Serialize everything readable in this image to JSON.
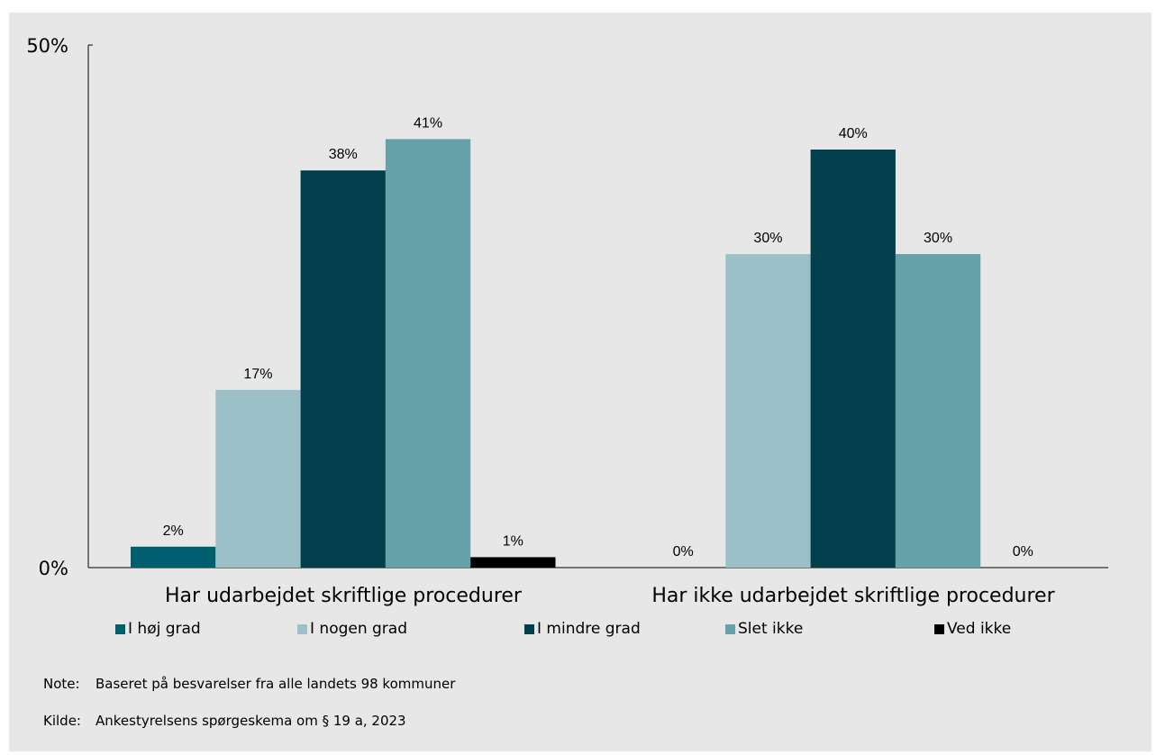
{
  "chart_data": {
    "type": "bar",
    "title": "",
    "xlabel": "",
    "ylabel": "",
    "ylim": [
      0,
      50
    ],
    "y_ticks": [
      {
        "value": 0,
        "label": "0%"
      },
      {
        "value": 50,
        "label": "50%"
      }
    ],
    "grid": false,
    "legend_position": "bottom",
    "categories": [
      "Har udarbejdet skriftlige procedurer",
      "Har ikke udarbejdet skriftlige procedurer"
    ],
    "series": [
      {
        "name": "I høj grad",
        "color": "#005f6e",
        "values": [
          2,
          0
        ],
        "labels": [
          "2%",
          "0%"
        ]
      },
      {
        "name": "I nogen grad",
        "color": "#9bc0c8",
        "values": [
          17,
          30
        ],
        "labels": [
          "17%",
          "30%"
        ]
      },
      {
        "name": "I mindre grad",
        "color": "#003f4b",
        "values": [
          38,
          40
        ],
        "labels": [
          "38%",
          "40%"
        ]
      },
      {
        "name": "Slet ikke",
        "color": "#66a2aa",
        "values": [
          41,
          30
        ],
        "labels": [
          "41%",
          "30%"
        ]
      },
      {
        "name": "Ved ikke",
        "color": "#000000",
        "values": [
          1,
          0
        ],
        "labels": [
          "1%",
          "0%"
        ]
      }
    ]
  },
  "notes": {
    "note_prefix": "Note:",
    "note_text": "Baseret på besvarelser fra alle landets 98 kommuner",
    "source_prefix": "Kilde:",
    "source_text": "Ankestyrelsens spørgeskema om § 19 a, 2023"
  }
}
